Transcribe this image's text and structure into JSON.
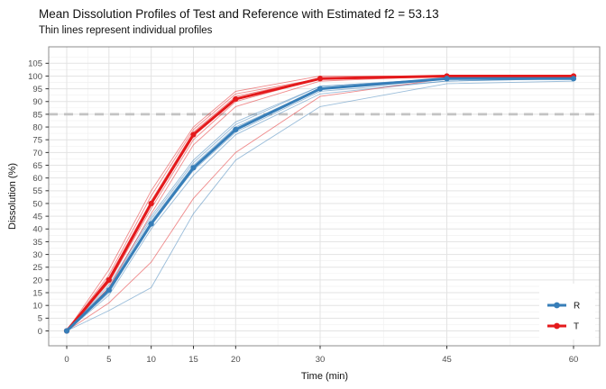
{
  "header": {
    "title": "Mean Dissolution Profiles of Test and Reference with Estimated f2 = 53.13",
    "subtitle": "Thin lines represent individual profiles"
  },
  "chart_data": {
    "type": "line",
    "title": "Mean Dissolution Profiles of Test and Reference with Estimated f2 = 53.13",
    "subtitle": "Thin lines represent individual profiles",
    "xlabel": "Time (min)",
    "ylabel": "Dissolution (%)",
    "x": [
      0,
      5,
      10,
      15,
      20,
      30,
      45,
      60
    ],
    "x_ticks": [
      0,
      5,
      10,
      15,
      20,
      30,
      45,
      60
    ],
    "y_ticks": [
      0,
      5,
      10,
      15,
      20,
      25,
      30,
      35,
      40,
      45,
      50,
      55,
      60,
      65,
      70,
      75,
      80,
      85,
      90,
      95,
      100,
      105
    ],
    "xlim": [
      0,
      60
    ],
    "ylim": [
      0,
      105
    ],
    "grid": "major and minor gridlines on white panel",
    "legend_position": "inside bottom-right",
    "legend_entries": [
      "R",
      "T"
    ],
    "reference_line": {
      "y": 85,
      "style": "dashed",
      "color": "#c3c3c3"
    },
    "series": [
      {
        "name": "R",
        "color": "#377EB8",
        "values": [
          0,
          16,
          42,
          64,
          79,
          95,
          99,
          99
        ]
      },
      {
        "name": "T",
        "color": "#E41A1C",
        "values": [
          0,
          20,
          50,
          77,
          91,
          99,
          100,
          100
        ]
      }
    ],
    "individual_profiles": [
      {
        "group": "R",
        "values": [
          0,
          18,
          45,
          67,
          82,
          96,
          99,
          100
        ]
      },
      {
        "group": "R",
        "values": [
          0,
          17,
          44,
          66,
          81,
          96,
          99,
          99
        ]
      },
      {
        "group": "R",
        "values": [
          0,
          16,
          43,
          65,
          80,
          95,
          99,
          99
        ]
      },
      {
        "group": "R",
        "values": [
          0,
          15,
          42,
          63,
          78,
          94,
          98,
          99
        ]
      },
      {
        "group": "R",
        "values": [
          0,
          14,
          40,
          61,
          77,
          93,
          98,
          99
        ]
      },
      {
        "group": "R",
        "values": [
          0,
          8,
          17,
          46,
          67,
          88,
          97,
          98
        ]
      },
      {
        "group": "T",
        "values": [
          0,
          24,
          55,
          80,
          94,
          100,
          100,
          100
        ]
      },
      {
        "group": "T",
        "values": [
          0,
          22,
          53,
          79,
          93,
          99,
          100,
          100
        ]
      },
      {
        "group": "T",
        "values": [
          0,
          21,
          51,
          78,
          92,
          99,
          100,
          100
        ]
      },
      {
        "group": "T",
        "values": [
          0,
          19,
          48,
          75,
          90,
          99,
          100,
          100
        ]
      },
      {
        "group": "T",
        "values": [
          0,
          17,
          46,
          73,
          88,
          98,
          100,
          100
        ]
      },
      {
        "group": "T",
        "values": [
          0,
          11,
          27,
          52,
          70,
          92,
          99,
          100
        ]
      }
    ]
  }
}
